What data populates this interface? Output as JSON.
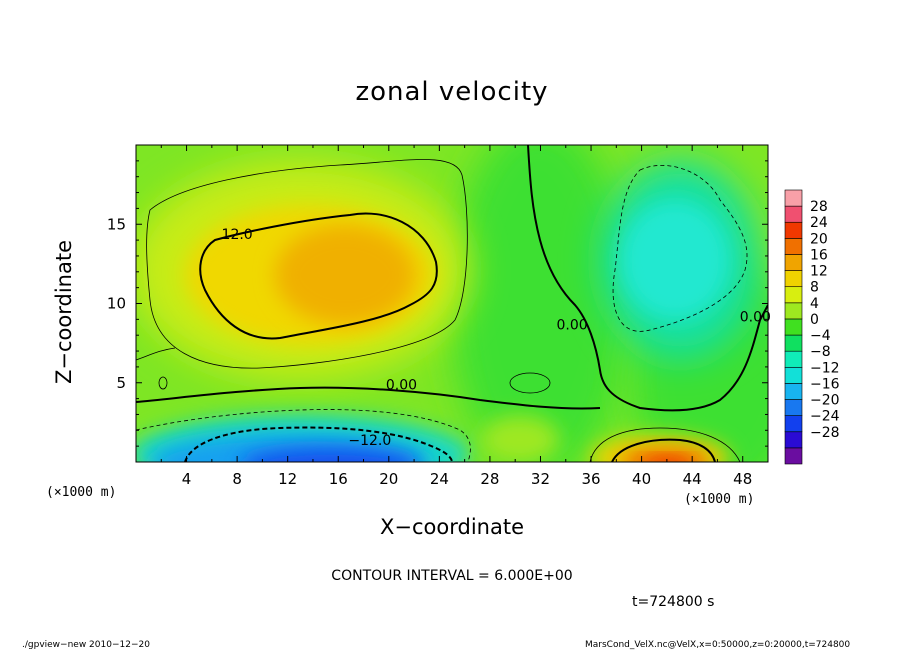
{
  "colors": {
    "levels": [
      "#6a0da0",
      "#2a0bd4",
      "#1240ee",
      "#1878f0",
      "#18b4f0",
      "#12e0d8",
      "#10ecb8",
      "#10e060",
      "#40e020",
      "#9ee820",
      "#d8ee10",
      "#f0d200",
      "#f0a400",
      "#f07000",
      "#f03800",
      "#f05070",
      "#f8a0a8"
    ]
  },
  "chart_data": {
    "type": "heatmap",
    "title": "zonal velocity",
    "xlabel": "X−coordinate",
    "ylabel": "Z−coordinate",
    "x_unit_label": "(×1000 m)",
    "z_unit_label": "(×1000 m)",
    "xlim": [
      0,
      50
    ],
    "zlim": [
      0,
      20
    ],
    "x_ticks": [
      4,
      8,
      12,
      16,
      20,
      24,
      28,
      32,
      36,
      40,
      44,
      48
    ],
    "z_ticks": [
      5,
      10,
      15
    ],
    "colorbar": {
      "min": -32,
      "max": 32,
      "step": 4,
      "tick_labels": [
        "−28",
        "−24",
        "−20",
        "−16",
        "−12",
        "−8",
        "−4",
        "0",
        "4",
        "8",
        "12",
        "16",
        "20",
        "24",
        "28"
      ]
    },
    "contour_interval_text": "CONTOUR INTERVAL = 6.000E+00",
    "contour_labels": [
      {
        "text": "12.0",
        "x": 8.0,
        "z": 14.2
      },
      {
        "text": "0.00",
        "x": 21.0,
        "z": 4.7
      },
      {
        "text": "−12.0",
        "x": 18.5,
        "z": 1.2
      },
      {
        "text": "0.00",
        "x": 34.5,
        "z": 8.5
      },
      {
        "text": "0.00",
        "x": 49.0,
        "z": 9.0
      }
    ],
    "features": [
      {
        "name": "positive core upper-left",
        "x": 16,
        "z": 12,
        "value": 16
      },
      {
        "name": "negative core near surface",
        "x": 18,
        "z": 0.5,
        "value": -18
      },
      {
        "name": "negative region upper-right",
        "x": 41,
        "z": 12,
        "value": -9
      },
      {
        "name": "positive jet near surface right",
        "x": 42.5,
        "z": 0.3,
        "value": 22
      }
    ]
  },
  "labels": {
    "time": "t=724800 s",
    "footer_left": "./gpview−new   2010−12−20",
    "footer_right": "MarsCond_VelX.nc@VelX,x=0:50000,z=0:20000,t=724800"
  }
}
